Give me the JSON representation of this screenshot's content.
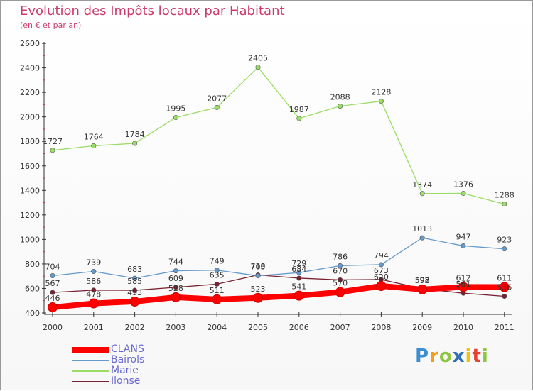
{
  "chart_data": {
    "type": "line",
    "title": "Evolution des Impôts locaux par Habitant",
    "subtitle": "(en € et par an)",
    "x": [
      "2000",
      "2001",
      "2002",
      "2003",
      "2004",
      "2005",
      "2006",
      "2007",
      "2008",
      "2009",
      "2010",
      "2011"
    ],
    "y_ticks": [
      "400",
      "600",
      "800",
      "1000",
      "1200",
      "1400",
      "1600",
      "1800",
      "2000",
      "2200",
      "2400",
      "2600"
    ],
    "ylim": [
      400,
      2600
    ],
    "grid": false,
    "legend_position": "bottom-left",
    "series": [
      {
        "name": "CLANS",
        "color": "#ff0000",
        "values": [
          446,
          478,
          493,
          528,
          511,
          523,
          541,
          570,
          620,
          592,
          612,
          611
        ]
      },
      {
        "name": "Bairols",
        "color": "#6699cc",
        "values": [
          704,
          739,
          683,
          744,
          749,
          703,
          729,
          786,
          794,
          1013,
          947,
          923
        ]
      },
      {
        "name": "Marie",
        "color": "#99dd66",
        "values": [
          1727,
          1764,
          1784,
          1995,
          2077,
          2405,
          1987,
          2088,
          2128,
          1374,
          1376,
          1288
        ]
      },
      {
        "name": "Ilonse",
        "color": "#772233",
        "values": [
          567,
          586,
          585,
          609,
          635,
          710,
          684,
          670,
          673,
          598,
          561,
          536
        ]
      }
    ]
  },
  "logo": {
    "letters": [
      "P",
      "r",
      "o",
      "x",
      "i",
      "t",
      "i"
    ],
    "colors": [
      "#3b8fd1",
      "#f59b1f",
      "#8fc63f",
      "#2f6fb6",
      "#f2c114",
      "#e8402f",
      "#8fc63f"
    ]
  }
}
